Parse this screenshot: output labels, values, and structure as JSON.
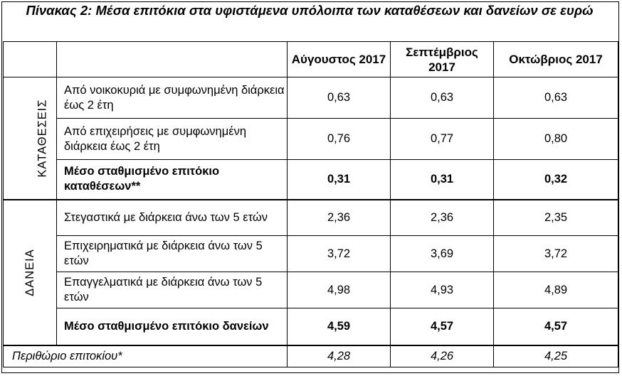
{
  "title": "Πίνακας 2: Μέσα επιτόκια στα υφιστάμενα υπόλοιπα των καταθέσεων και  δανείων σε ευρώ",
  "columns": [
    "Αύγουστος 2017",
    "Σεπτέμβριος 2017",
    "Οκτώβριος 2017"
  ],
  "groups": {
    "deposits": "ΚΑΤΑΘΕΣΕΙΣ",
    "loans": "ΔΑΝΕΙΑ"
  },
  "rows": [
    {
      "label": "Από νοικοκυριά με συμφωνημένη διάρκεια έως 2 έτη",
      "values": [
        "0,63",
        "0,63",
        "0,63"
      ]
    },
    {
      "label": "Από επιχειρήσεις με συμφωνημένη διάρκεια έως 2 έτη",
      "values": [
        "0,76",
        "0,77",
        "0,80"
      ]
    },
    {
      "label": "Μέσο σταθμισμένο επιτόκιο καταθέσεων**",
      "values": [
        "0,31",
        "0,31",
        "0,32"
      ]
    },
    {
      "label": "Στεγαστικά με διάρκεια  άνω των 5 ετών",
      "values": [
        "2,36",
        "2,36",
        "2,35"
      ]
    },
    {
      "label": "Επιχειρηματικά με διάρκεια άνω των 5 ετών",
      "values": [
        "3,72",
        "3,69",
        "3,72"
      ]
    },
    {
      "label": "Επαγγελματικά με διάρκεια άνω των 5 ετών",
      "values": [
        "4,98",
        "4,93",
        "4,89"
      ]
    },
    {
      "label": "Μέσο σταθμισμένο επιτόκιο δανείων",
      "values": [
        "4,59",
        "4,57",
        "4,57"
      ]
    }
  ],
  "footer": {
    "label": "Περιθώριο επιτοκίου*",
    "values": [
      "4,28",
      "4,26",
      "4,25"
    ]
  }
}
